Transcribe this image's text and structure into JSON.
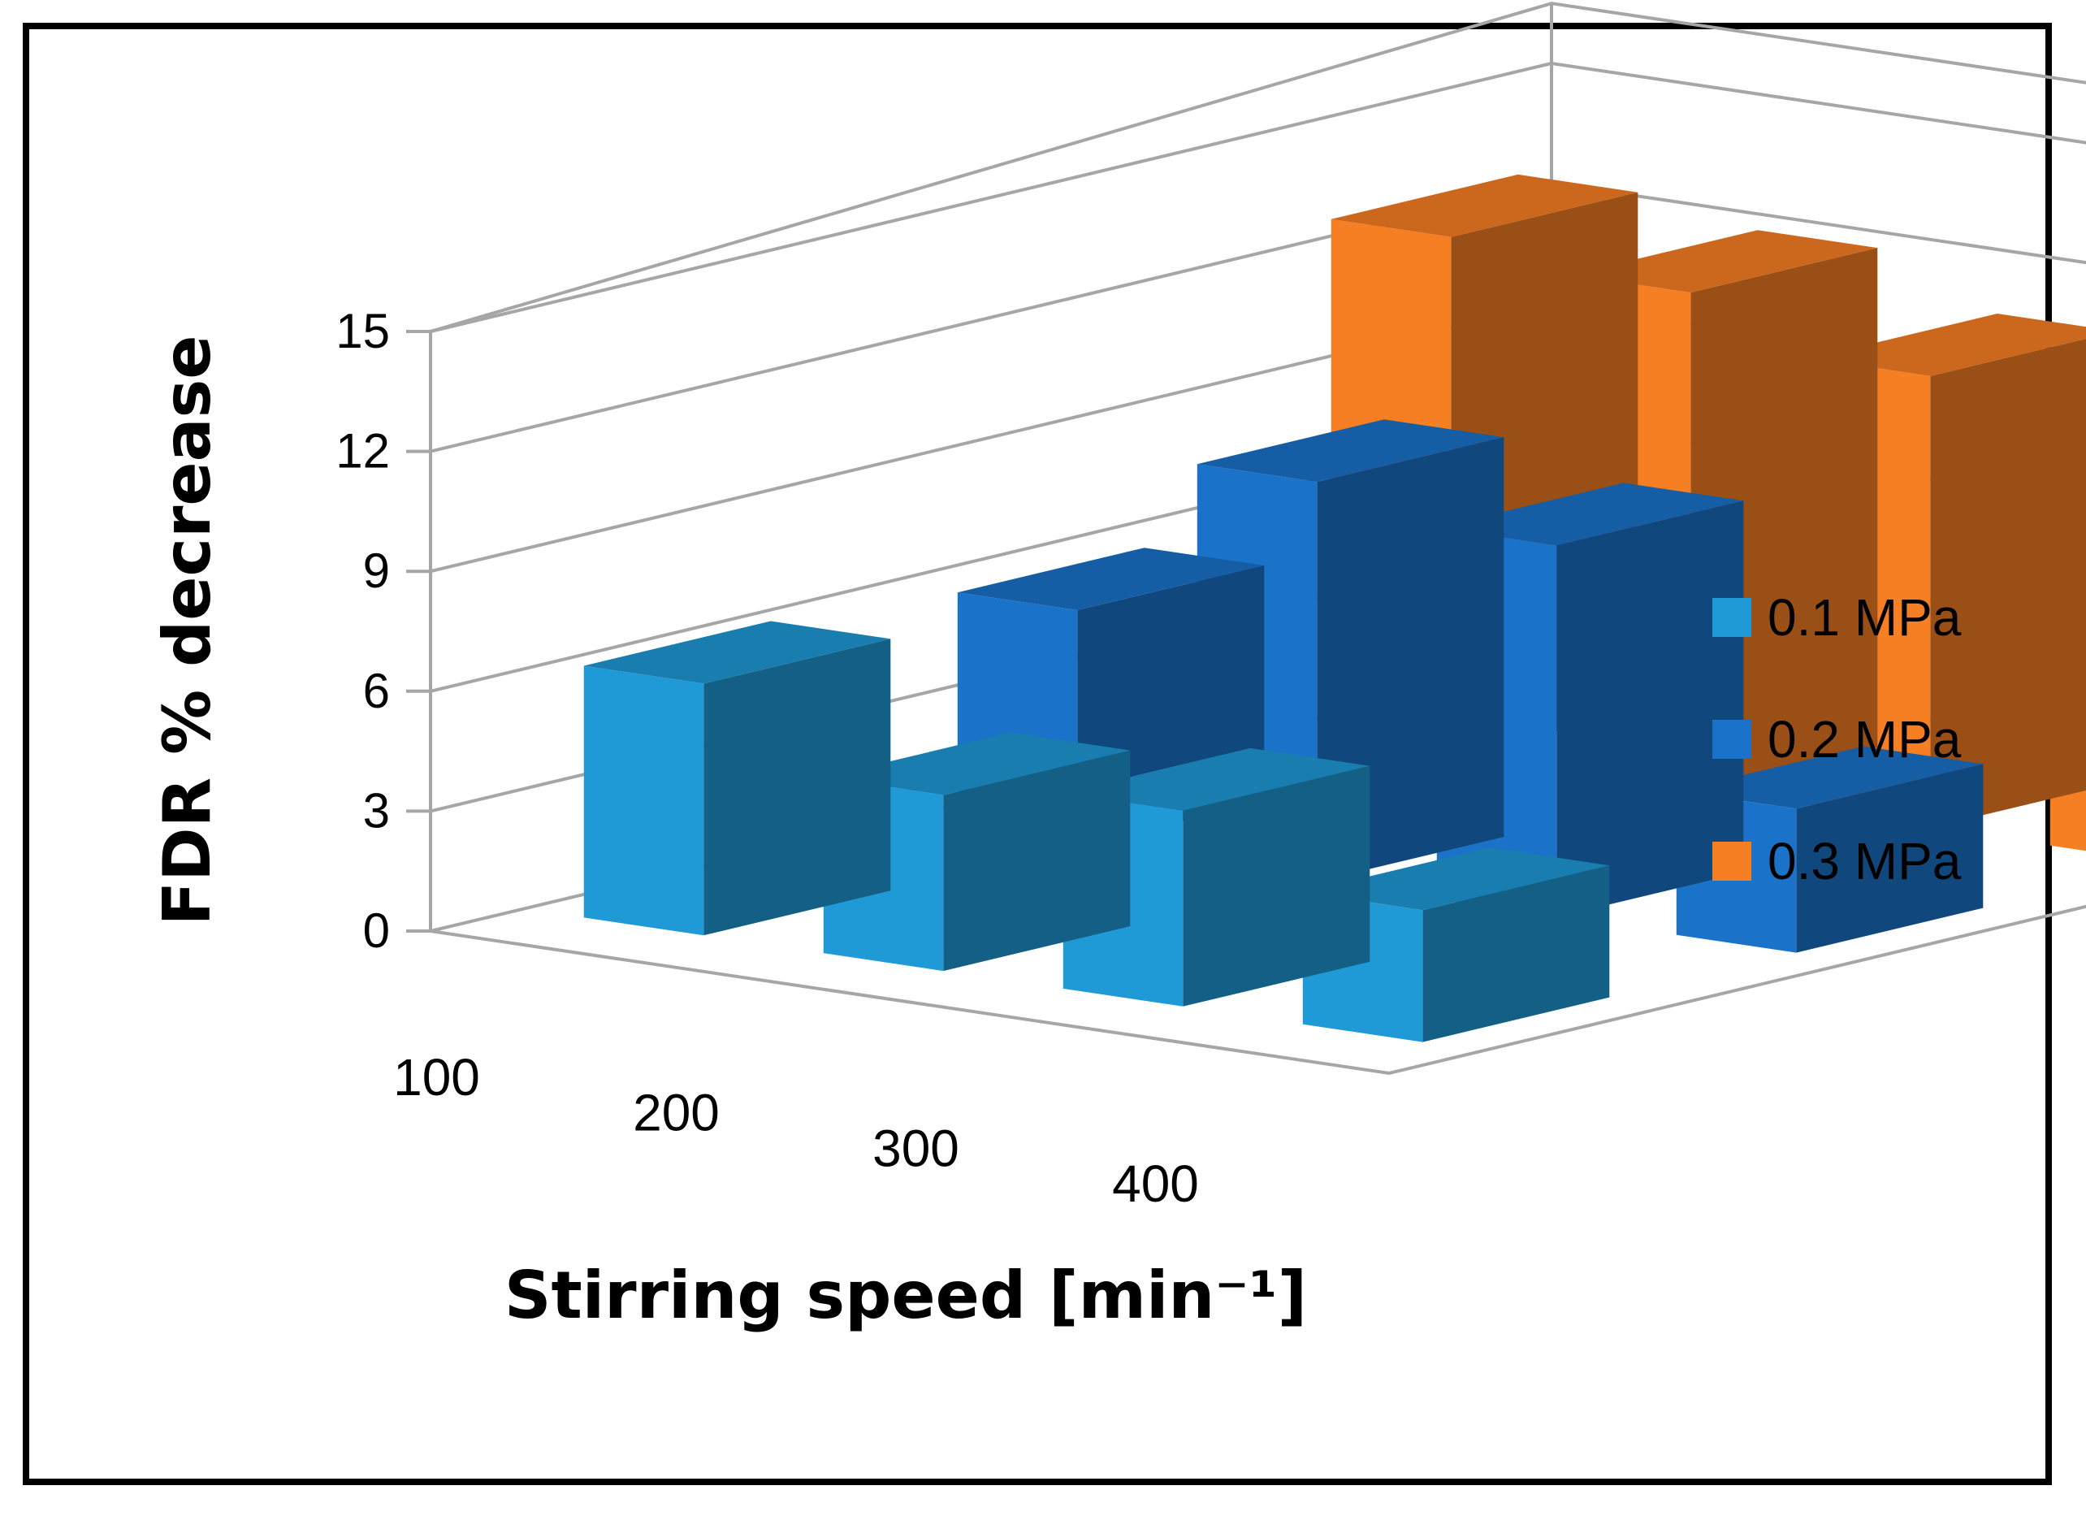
{
  "chart_data": {
    "type": "bar",
    "style": "3d-clustered-column",
    "title": "",
    "xlabel": "Stirring speed [min⁻¹]",
    "ylabel": "FDR % decrease",
    "categories": [
      "100",
      "200",
      "300",
      "400"
    ],
    "ylim": [
      0,
      15
    ],
    "yticks": [
      "0",
      "3",
      "6",
      "9",
      "12",
      "15"
    ],
    "grid": true,
    "legend_position": "right",
    "series": [
      {
        "name": "0.1 MPa",
        "values": [
          6.3,
          4.4,
          4.9,
          3.3
        ],
        "color": "#1f9ad6"
      },
      {
        "name": "0.2 MPa",
        "values": [
          5.9,
          10.0,
          9.3,
          3.6
        ],
        "color": "#1a73c9"
      },
      {
        "name": "0.3 MPa",
        "values": [
          13.0,
          12.5,
          11.3,
          8.1
        ],
        "color": "#f77f23"
      }
    ]
  }
}
